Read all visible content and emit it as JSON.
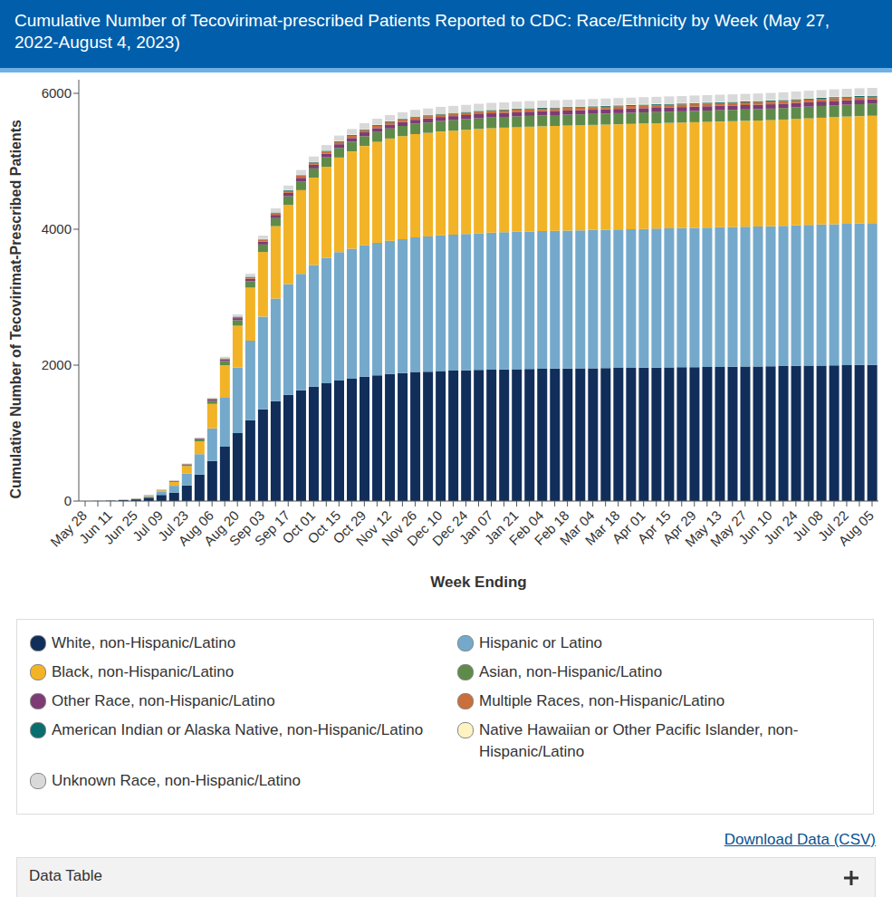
{
  "chart_data": {
    "type": "bar",
    "title": "Cumulative Number of Tecovirimat-prescribed Patients Reported to CDC: Race/Ethnicity by Week (May 27, 2022-August 4, 2023)",
    "x_label": "Week Ending",
    "y_label": "Cumulative Number of Tecovirimat-Prescribed Patients",
    "annotations": [
      "Download Data (CSV)",
      "Data Table"
    ],
    "stacked": true,
    "grid": false,
    "legend": "bottom",
    "ylim": [
      0,
      6200
    ],
    "yticks": [
      0,
      2000,
      4000,
      6000
    ],
    "categories": [
      "May 28",
      null,
      "Jun 11",
      null,
      "Jun 25",
      null,
      "Jul 09",
      null,
      "Jul 23",
      null,
      "Aug 06",
      null,
      "Aug 20",
      null,
      "Sep 03",
      null,
      "Sep 17",
      null,
      "Oct 01",
      null,
      "Oct 15",
      null,
      "Oct 29",
      null,
      "Nov 12",
      null,
      "Nov 26",
      null,
      "Dec 10",
      null,
      "Dec 24",
      null,
      "Jan 07",
      null,
      "Jan 21",
      null,
      "Feb 04",
      null,
      "Feb 18",
      null,
      "Mar 04",
      null,
      "Mar 18",
      null,
      "Apr 01",
      null,
      "Apr 15",
      null,
      "Apr 29",
      null,
      "May 13",
      null,
      "May 27",
      null,
      "Jun 10",
      null,
      "Jun 24",
      null,
      "Jul 08",
      null,
      "Jul 22",
      null,
      "Aug 05"
    ],
    "series": [
      {
        "name": "White, non-Hispanic/Latino",
        "color": "#112e5a",
        "values": [
          0,
          2,
          6,
          14,
          25,
          50,
          90,
          125,
          230,
          390,
          590,
          800,
          1000,
          1190,
          1350,
          1470,
          1565,
          1630,
          1685,
          1735,
          1775,
          1800,
          1830,
          1850,
          1870,
          1885,
          1900,
          1905,
          1915,
          1920,
          1925,
          1930,
          1935,
          1938,
          1941,
          1944,
          1947,
          1949,
          1951,
          1953,
          1955,
          1957,
          1959,
          1961,
          1963,
          1965,
          1967,
          1969,
          1971,
          1973,
          1975,
          1977,
          1979,
          1981,
          1983,
          1986,
          1989,
          1992,
          1995,
          1998,
          2001,
          2003,
          2005
        ]
      },
      {
        "name": "Hispanic or Latino",
        "color": "#74a9cb",
        "values": [
          0,
          0,
          2,
          4,
          8,
          22,
          45,
          100,
          175,
          300,
          480,
          720,
          965,
          1170,
          1365,
          1510,
          1630,
          1715,
          1790,
          1845,
          1890,
          1915,
          1935,
          1950,
          1960,
          1970,
          1980,
          1988,
          1995,
          2000,
          2005,
          2010,
          2015,
          2018,
          2021,
          2024,
          2026,
          2028,
          2030,
          2032,
          2034,
          2036,
          2038,
          2040,
          2042,
          2044,
          2046,
          2048,
          2050,
          2052,
          2054,
          2056,
          2058,
          2060,
          2062,
          2065,
          2068,
          2071,
          2074,
          2077,
          2080,
          2083,
          2085
        ]
      },
      {
        "name": "Black, non-Hispanic/Latino",
        "color": "#f2b326",
        "values": [
          0,
          0,
          0,
          1,
          3,
          10,
          22,
          55,
          110,
          190,
          360,
          480,
          615,
          780,
          950,
          1065,
          1165,
          1230,
          1285,
          1340,
          1390,
          1430,
          1460,
          1485,
          1505,
          1515,
          1520,
          1525,
          1528,
          1530,
          1533,
          1535,
          1537,
          1539,
          1540,
          1541,
          1542,
          1543,
          1544,
          1545,
          1546,
          1547,
          1548,
          1549,
          1550,
          1551,
          1552,
          1553,
          1554,
          1555,
          1556,
          1557,
          1558,
          1559,
          1561,
          1563,
          1566,
          1569,
          1572,
          1575,
          1577,
          1579,
          1580
        ]
      },
      {
        "name": "Asian, non-Hispanic/Latino",
        "color": "#5f8b4a",
        "values": [
          0,
          0,
          1,
          1,
          2,
          4,
          6,
          12,
          18,
          28,
          45,
          60,
          80,
          95,
          110,
          118,
          125,
          130,
          135,
          138,
          140,
          142,
          144,
          146,
          148,
          150,
          152,
          153,
          154,
          155,
          156,
          157,
          158,
          158,
          159,
          159,
          160,
          160,
          161,
          161,
          162,
          162,
          163,
          163,
          164,
          164,
          165,
          165,
          166,
          166,
          167,
          167,
          168,
          168,
          169,
          170,
          171,
          172,
          173,
          174,
          174,
          175,
          175
        ]
      },
      {
        "name": "Other Race, non-Hispanic/Latino",
        "color": "#7d3c74",
        "values": [
          0,
          0,
          0,
          0,
          1,
          1,
          2,
          4,
          7,
          10,
          18,
          24,
          32,
          38,
          44,
          48,
          50,
          52,
          54,
          55,
          56,
          56,
          57,
          57,
          58,
          58,
          59,
          59,
          60,
          60,
          60,
          61,
          61,
          61,
          61,
          62,
          62,
          62,
          62,
          62,
          62,
          62,
          63,
          63,
          63,
          63,
          63,
          63,
          63,
          64,
          64,
          64,
          64,
          64,
          64,
          64,
          65,
          65,
          65,
          65,
          65,
          65,
          65
        ]
      },
      {
        "name": "Multiple Races, non-Hispanic/Latino",
        "color": "#c86f3c",
        "values": [
          0,
          0,
          0,
          0,
          0,
          1,
          1,
          2,
          4,
          6,
          10,
          13,
          18,
          22,
          25,
          27,
          29,
          30,
          31,
          32,
          32,
          33,
          33,
          34,
          34,
          34,
          35,
          35,
          35,
          35,
          36,
          36,
          36,
          36,
          37,
          37,
          37,
          37,
          37,
          37,
          37,
          38,
          38,
          38,
          38,
          38,
          38,
          38,
          39,
          39,
          39,
          39,
          39,
          39,
          39,
          39,
          40,
          40,
          40,
          40,
          40,
          40,
          40
        ]
      },
      {
        "name": "American Indian or Alaska Native, non-Hispanic/Latino",
        "color": "#0b6e6e",
        "values": [
          0,
          0,
          0,
          0,
          0,
          0,
          0,
          1,
          1,
          2,
          3,
          4,
          5,
          6,
          7,
          8,
          9,
          9,
          10,
          10,
          10,
          11,
          11,
          11,
          11,
          12,
          12,
          12,
          12,
          12,
          12,
          13,
          13,
          13,
          13,
          13,
          13,
          13,
          13,
          13,
          13,
          13,
          13,
          14,
          14,
          14,
          14,
          14,
          14,
          14,
          14,
          14,
          14,
          15,
          15,
          15,
          15,
          15,
          15,
          15,
          15,
          15,
          15
        ]
      },
      {
        "name": "Native Hawaiian or Other Pacific Islander, non-Hispanic/Latino",
        "color": "#fff3c2",
        "values": [
          0,
          0,
          0,
          0,
          0,
          0,
          0,
          0,
          1,
          1,
          2,
          3,
          3,
          4,
          5,
          5,
          5,
          6,
          6,
          6,
          6,
          6,
          7,
          7,
          7,
          7,
          7,
          7,
          8,
          8,
          8,
          8,
          8,
          8,
          8,
          8,
          8,
          8,
          8,
          8,
          8,
          9,
          9,
          9,
          9,
          9,
          9,
          9,
          9,
          9,
          9,
          9,
          9,
          9,
          10,
          10,
          10,
          10,
          10,
          10,
          10,
          10,
          10
        ]
      },
      {
        "name": "Unknown Race, non-Hispanic/Latino",
        "color": "#d9d9d9",
        "values": [
          0,
          1,
          1,
          1,
          2,
          3,
          4,
          6,
          8,
          10,
          15,
          20,
          30,
          40,
          50,
          58,
          65,
          70,
          75,
          78,
          80,
          82,
          84,
          86,
          88,
          90,
          92,
          93,
          94,
          95,
          96,
          96,
          97,
          97,
          98,
          98,
          98,
          99,
          99,
          99,
          100,
          100,
          100,
          100,
          101,
          101,
          101,
          101,
          102,
          102,
          102,
          102,
          103,
          103,
          103,
          103,
          104,
          104,
          104,
          105,
          105,
          105,
          105
        ]
      }
    ]
  }
}
